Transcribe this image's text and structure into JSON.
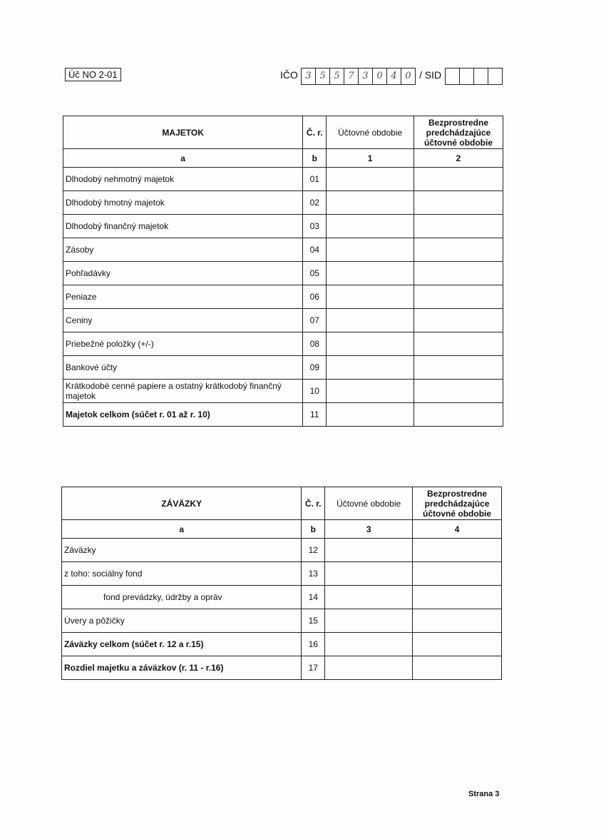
{
  "header": {
    "form_code": "Úč NO 2-01",
    "ico_label": "IČO",
    "ico_digits": [
      "3",
      "5",
      "5",
      "7",
      "3",
      "0",
      "4",
      "0"
    ],
    "sid_label": "/ SID",
    "sid_digits": [
      "",
      "",
      "",
      ""
    ]
  },
  "assets": {
    "headers": {
      "item": "MAJETOK",
      "row_no": "Č. r.",
      "current": "Účtovné obdobie",
      "previous": "Bezprostredne predchádzajúce účtovné obdobie"
    },
    "letters": [
      "a",
      "b",
      "1",
      "2"
    ],
    "rows": [
      {
        "label": "Dlhodobý nehmotný majetok",
        "no": "01"
      },
      {
        "label": "Dlhodobý hmotný majetok",
        "no": "02"
      },
      {
        "label": "Dlhodobý finančný majetok",
        "no": "03"
      },
      {
        "label": "Zásoby",
        "no": "04"
      },
      {
        "label": "Pohľadávky",
        "no": "05"
      },
      {
        "label": "Peniaze",
        "no": "06"
      },
      {
        "label": "Ceniny",
        "no": "07"
      },
      {
        "label": "Priebežné položky (+/-)",
        "no": "08"
      },
      {
        "label": "Bankové účty",
        "no": "09"
      },
      {
        "label": "Krátkodobé cenné papiere a ostatný krátkodobý finančný majetok",
        "no": "10"
      },
      {
        "label": "Majetok celkom (súčet r. 01 až r. 10)",
        "no": "11",
        "bold": true
      }
    ]
  },
  "liabilities": {
    "headers": {
      "item": "ZÁVÄZKY",
      "row_no": "Č. r.",
      "current": "Účtovné obdobie",
      "previous": "Bezprostredne predchádzajúce účtovné obdobie"
    },
    "letters": [
      "a",
      "b",
      "3",
      "4"
    ],
    "rows": [
      {
        "label": "Záväzky",
        "no": "12"
      },
      {
        "label": "z toho: sociálny fond",
        "no": "13"
      },
      {
        "label": "fond prevádzky, údržby a opráv",
        "no": "14",
        "indent": true
      },
      {
        "label": "Úvery a pôžičky",
        "no": "15"
      },
      {
        "label": "Záväzky celkom (súčet r. 12 a r.15)",
        "no": "16",
        "bold": true
      },
      {
        "label": "Rozdiel majetku a záväzkov (r. 11 - r.16)",
        "no": "17",
        "bold": true
      }
    ]
  },
  "footer": {
    "page": "Strana 3"
  }
}
